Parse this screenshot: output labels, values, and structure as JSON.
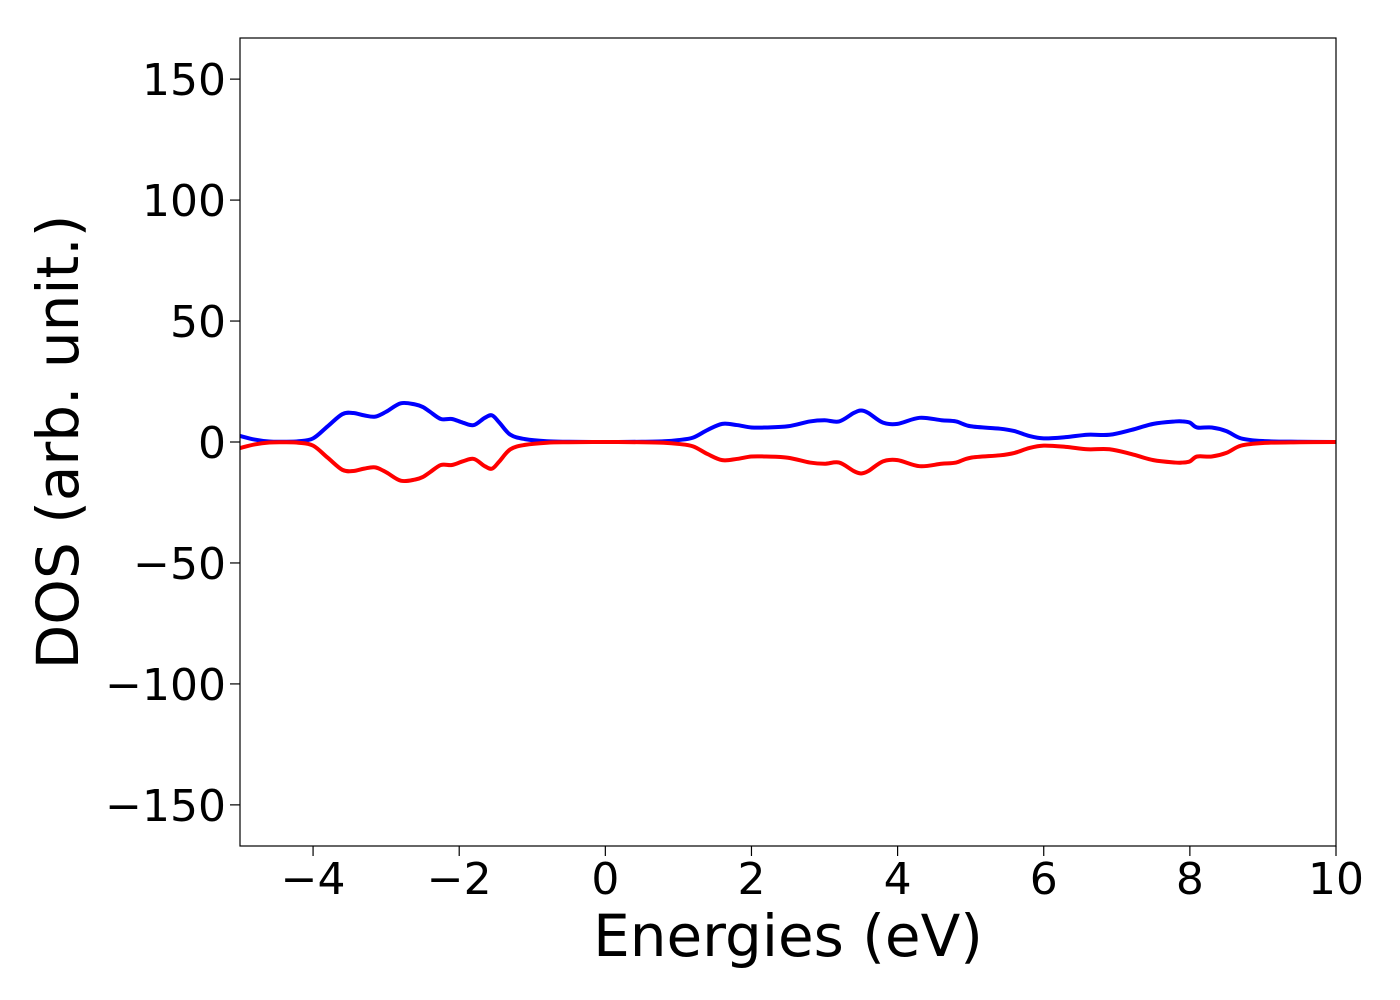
{
  "chart_data": {
    "type": "line",
    "title": "",
    "xlabel": "Energies (eV)",
    "ylabel": "DOS (arb. unit.)",
    "xlim": [
      -5,
      10
    ],
    "ylim": [
      -167,
      167
    ],
    "xticks": [
      -4,
      -2,
      0,
      2,
      4,
      6,
      8,
      10
    ],
    "xtick_labels": [
      "−4",
      "−2",
      "0",
      "2",
      "4",
      "6",
      "8",
      "10"
    ],
    "yticks": [
      150,
      100,
      50,
      0,
      -50,
      -100,
      -150
    ],
    "ytick_labels": [
      "150",
      "100",
      "50",
      "0",
      "−50",
      "−100",
      "−150"
    ],
    "grid": false,
    "legend": "none",
    "x": [
      -5,
      -4.8,
      -4.6,
      -4.4,
      -4.2,
      -4.0,
      -3.8,
      -3.6,
      -3.45,
      -3.3,
      -3.15,
      -3.0,
      -2.8,
      -2.6,
      -2.5,
      -2.4,
      -2.25,
      -2.1,
      -1.95,
      -1.8,
      -1.65,
      -1.55,
      -1.45,
      -1.3,
      -1.1,
      -0.8,
      -0.5,
      0,
      0.5,
      0.8,
      1.0,
      1.2,
      1.4,
      1.6,
      1.8,
      2.0,
      2.2,
      2.5,
      2.8,
      3.0,
      3.2,
      3.4,
      3.5,
      3.6,
      3.8,
      4.0,
      4.3,
      4.6,
      4.8,
      5.0,
      5.4,
      5.6,
      5.8,
      6.0,
      6.3,
      6.6,
      6.9,
      7.2,
      7.5,
      7.8,
      7.9,
      8.0,
      8.1,
      8.3,
      8.5,
      8.7,
      9.0,
      9.5,
      10
    ],
    "series": [
      {
        "color": "#0000ff",
        "values": [
          2.5,
          1.0,
          0.2,
          0.1,
          0.3,
          1.5,
          6.5,
          11.5,
          12.0,
          11.0,
          10.5,
          12.5,
          16.0,
          15.5,
          14.5,
          12.5,
          9.5,
          9.5,
          8.0,
          7.0,
          10.0,
          11.0,
          8.0,
          3.0,
          1.2,
          0.3,
          0.1,
          0.0,
          0.1,
          0.3,
          0.8,
          1.8,
          5.0,
          7.5,
          7.0,
          6.0,
          6.0,
          6.5,
          8.5,
          9.0,
          8.5,
          12.0,
          13.0,
          12.0,
          8.0,
          7.5,
          10.0,
          9.0,
          8.5,
          6.5,
          5.5,
          4.5,
          2.5,
          1.5,
          2.0,
          3.0,
          3.0,
          5.0,
          7.5,
          8.5,
          8.5,
          8.0,
          6.0,
          6.0,
          4.5,
          1.5,
          0.4,
          0.1,
          0.0
        ]
      },
      {
        "color": "#ff0000",
        "values": [
          -2.5,
          -1.0,
          -0.2,
          -0.1,
          -0.3,
          -1.5,
          -6.5,
          -11.5,
          -12.0,
          -11.0,
          -10.5,
          -12.5,
          -16.0,
          -15.5,
          -14.5,
          -12.5,
          -9.5,
          -9.5,
          -8.0,
          -7.0,
          -10.0,
          -11.0,
          -8.0,
          -3.0,
          -1.2,
          -0.3,
          -0.1,
          0.0,
          -0.1,
          -0.3,
          -0.8,
          -1.8,
          -5.0,
          -7.5,
          -7.0,
          -6.0,
          -6.0,
          -6.5,
          -8.5,
          -9.0,
          -8.5,
          -12.0,
          -13.0,
          -12.0,
          -8.0,
          -7.5,
          -10.0,
          -9.0,
          -8.5,
          -6.5,
          -5.5,
          -4.5,
          -2.5,
          -1.5,
          -2.0,
          -3.0,
          -3.0,
          -5.0,
          -7.5,
          -8.5,
          -8.5,
          -8.0,
          -6.0,
          -6.0,
          -4.5,
          -1.5,
          -0.4,
          -0.1,
          0.0
        ]
      }
    ]
  }
}
